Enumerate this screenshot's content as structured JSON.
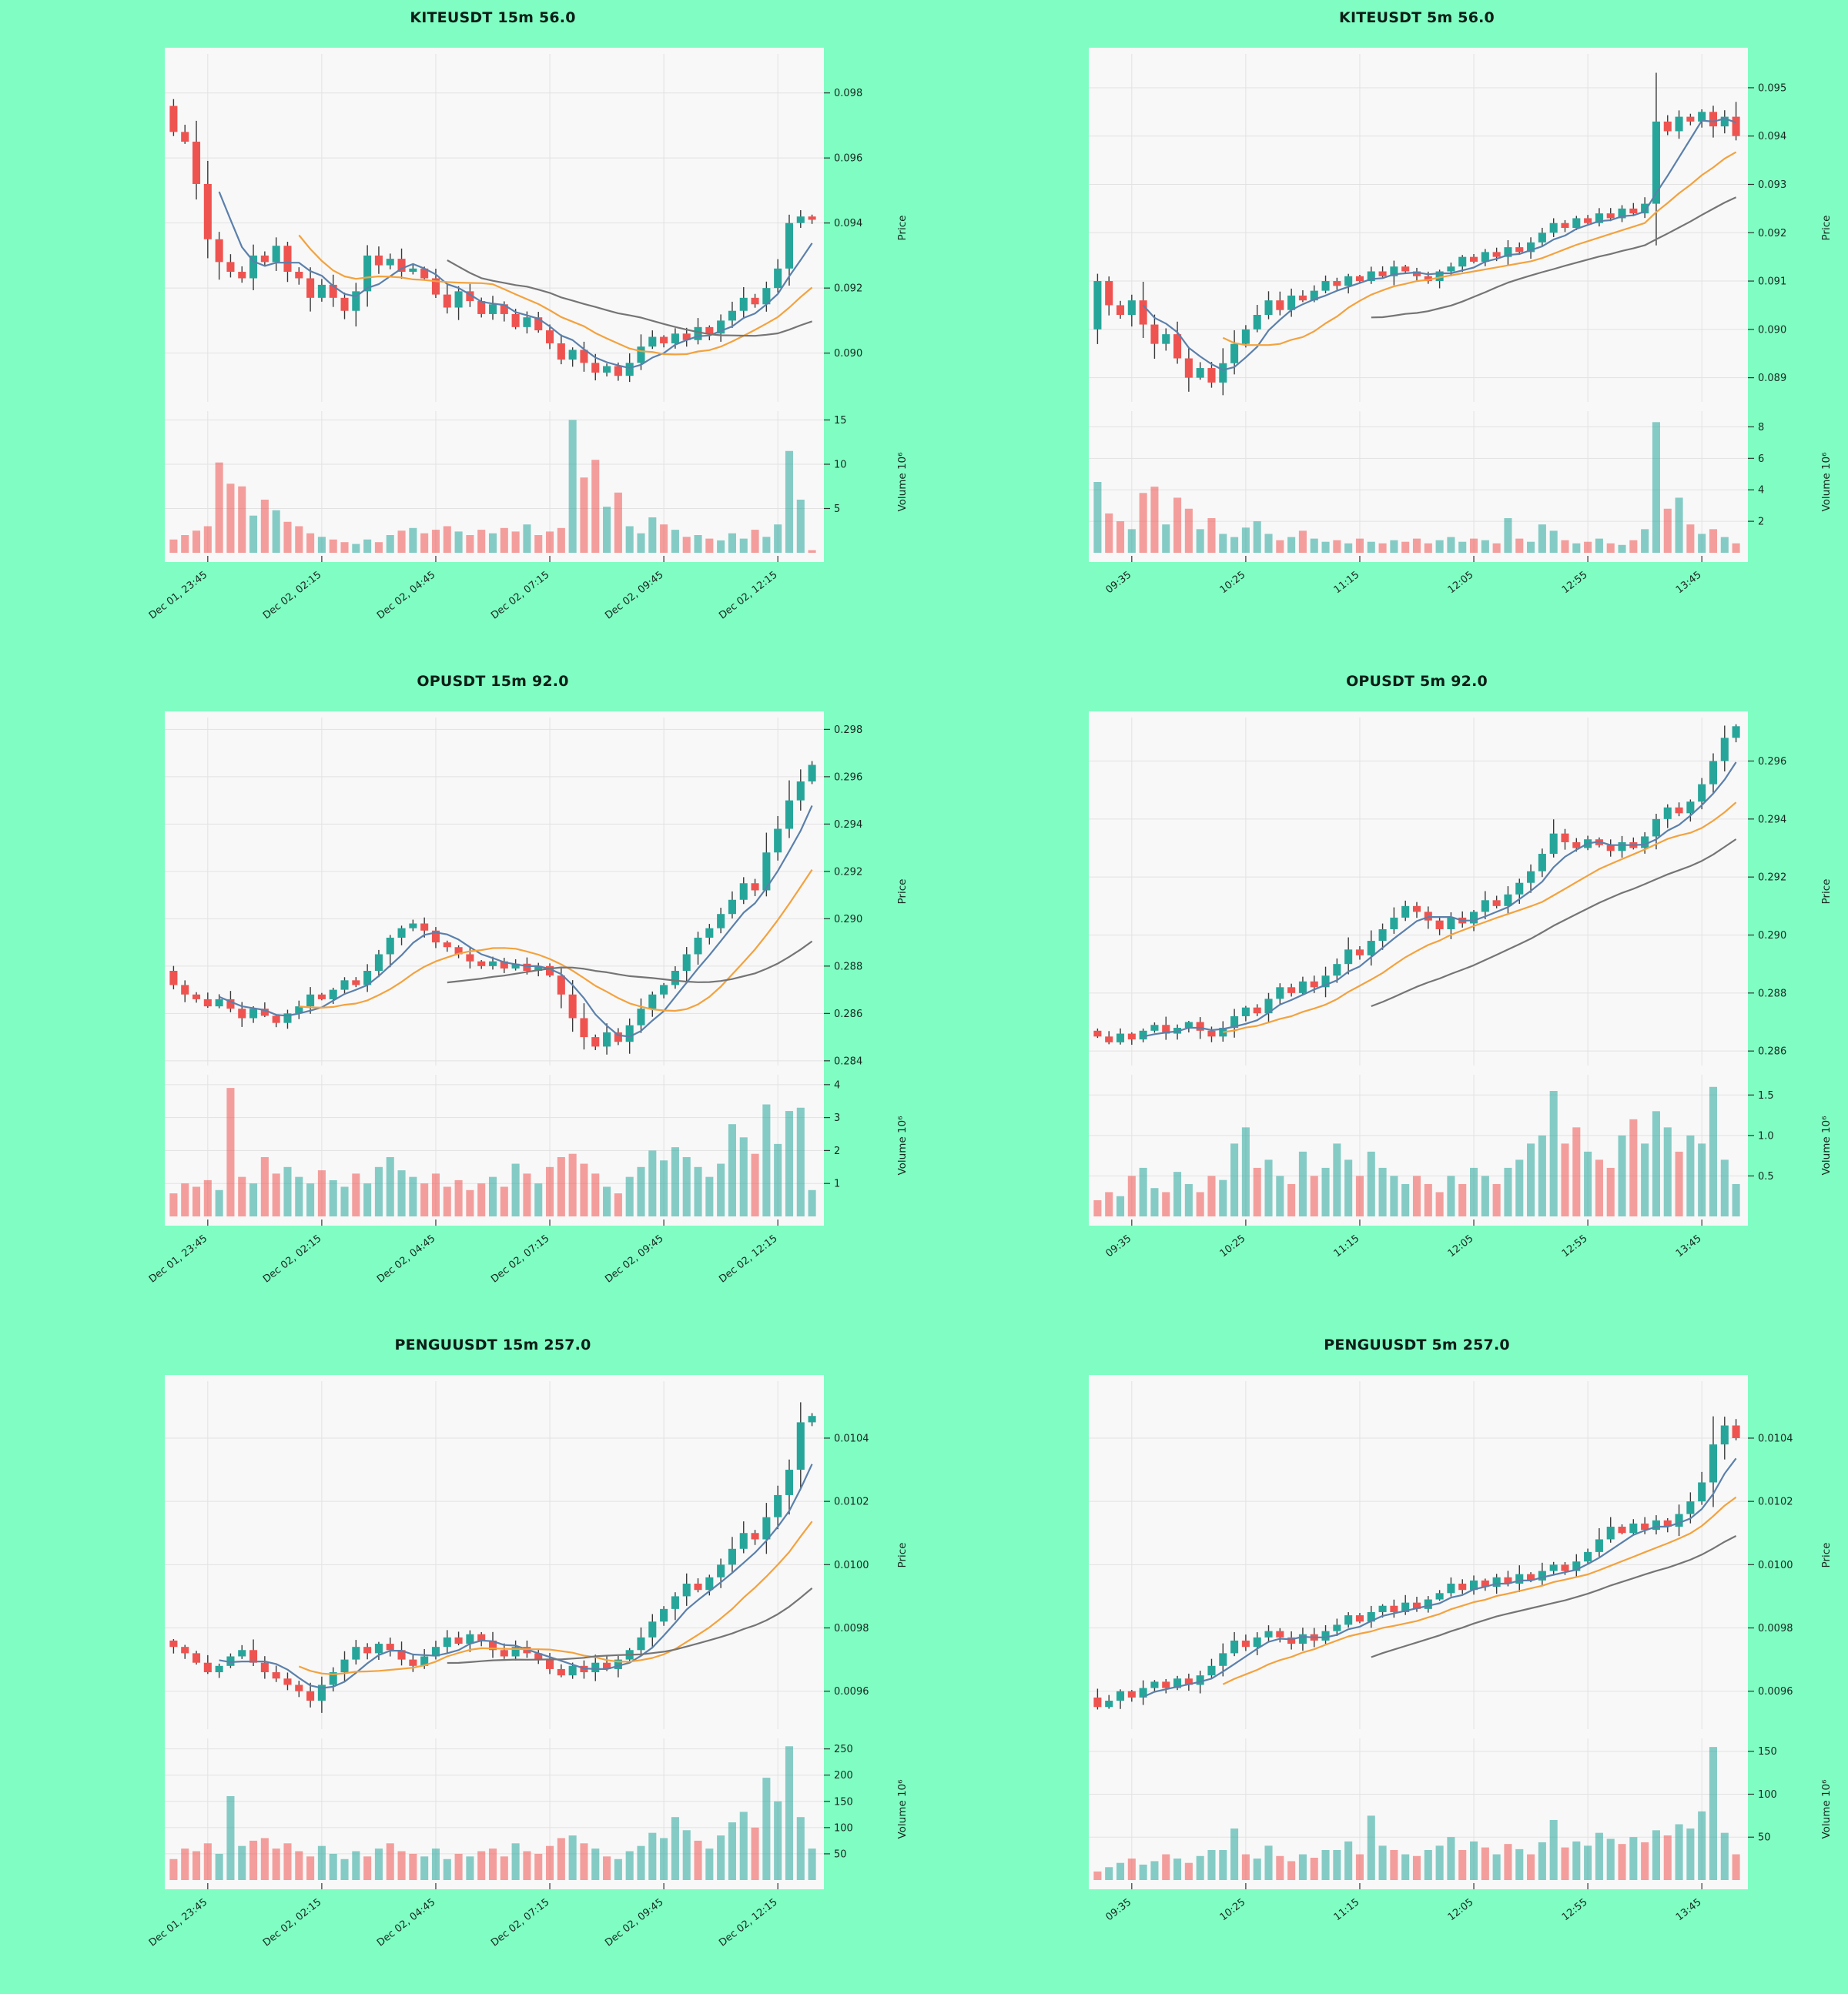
{
  "page": {
    "background": "#80fdc3"
  },
  "style": {
    "panel_bg": "#f8f8f8",
    "grid_color": "#e2e2e2",
    "tick_color": "#333333",
    "label_color": "#16281f",
    "bull_color": "#26a69a",
    "bear_color": "#ef5350",
    "wick_color": "#3a3a3a",
    "volume_opacity": 0.55,
    "ma_colors": [
      "#5b80ab",
      "#f3a23e",
      "#757575"
    ]
  },
  "axis_labels": {
    "price": "Price",
    "volume": "Volume 10⁶"
  },
  "chart_data": [
    {
      "type": "candlestick",
      "title": "KITEUSDT 15m 56.0",
      "symbol": "KITEUSDT",
      "interval": "15m",
      "score": "56.0",
      "legend_position": "none",
      "grid": true,
      "x_tick_labels": [
        "Dec 01, 23:45",
        "Dec 02, 02:15",
        "Dec 02, 04:45",
        "Dec 02, 07:15",
        "Dec 02, 09:45",
        "Dec 02, 12:15"
      ],
      "x_tick_indices": [
        3,
        13,
        23,
        33,
        43,
        53
      ],
      "price_ticks": [
        {
          "v": 0.09,
          "label": "0.090"
        },
        {
          "v": 0.092,
          "label": "0.092"
        },
        {
          "v": 0.094,
          "label": "0.094"
        },
        {
          "v": 0.096,
          "label": "0.096"
        },
        {
          "v": 0.098,
          "label": "0.098"
        }
      ],
      "price_range": [
        0.0885,
        0.0992
      ],
      "volume_ticks": [
        {
          "v": 5,
          "label": "5"
        },
        {
          "v": 10,
          "label": "10"
        },
        {
          "v": 15,
          "label": "15"
        }
      ],
      "volume_max": 16,
      "ma_windows": [
        5,
        12,
        25
      ],
      "open_first": 0.0976,
      "closes": [
        0.0968,
        0.0965,
        0.0952,
        0.0935,
        0.0928,
        0.0925,
        0.0923,
        0.093,
        0.0928,
        0.0933,
        0.0925,
        0.0923,
        0.0917,
        0.0921,
        0.0917,
        0.0913,
        0.0919,
        0.093,
        0.0927,
        0.0929,
        0.0925,
        0.0926,
        0.0923,
        0.0918,
        0.0914,
        0.0919,
        0.0916,
        0.0912,
        0.0915,
        0.0912,
        0.0908,
        0.0911,
        0.0907,
        0.0903,
        0.0898,
        0.0901,
        0.0897,
        0.0894,
        0.0896,
        0.0893,
        0.0897,
        0.0902,
        0.0905,
        0.0903,
        0.0906,
        0.0904,
        0.0908,
        0.0906,
        0.091,
        0.0913,
        0.0917,
        0.0915,
        0.092,
        0.0926,
        0.094,
        0.0942,
        0.0941
      ],
      "volumes": [
        1.5,
        2.0,
        2.5,
        3.0,
        10.2,
        7.8,
        7.5,
        4.2,
        6.0,
        4.8,
        3.5,
        3.0,
        2.2,
        1.8,
        1.5,
        1.2,
        1.0,
        1.5,
        1.2,
        2.0,
        2.5,
        2.8,
        2.2,
        2.6,
        3.0,
        2.4,
        2.0,
        2.6,
        2.2,
        2.8,
        2.4,
        3.2,
        2.0,
        2.4,
        2.8,
        15.0,
        8.5,
        10.5,
        5.2,
        6.8,
        3.0,
        2.2,
        4.0,
        3.2,
        2.6,
        1.8,
        2.0,
        1.6,
        1.4,
        2.2,
        1.6,
        2.6,
        1.8,
        3.2,
        11.5,
        6.0,
        0.3
      ]
    },
    {
      "type": "candlestick",
      "title": "KITEUSDT 5m 56.0",
      "symbol": "KITEUSDT",
      "interval": "5m",
      "score": "56.0",
      "legend_position": "none",
      "grid": true,
      "x_tick_labels": [
        "09:35",
        "10:25",
        "11:15",
        "12:05",
        "12:55",
        "13:45"
      ],
      "x_tick_indices": [
        3,
        13,
        23,
        33,
        43,
        53
      ],
      "price_ticks": [
        {
          "v": 0.089,
          "label": "0.089"
        },
        {
          "v": 0.09,
          "label": "0.090"
        },
        {
          "v": 0.091,
          "label": "0.091"
        },
        {
          "v": 0.092,
          "label": "0.092"
        },
        {
          "v": 0.093,
          "label": "0.093"
        },
        {
          "v": 0.094,
          "label": "0.094"
        },
        {
          "v": 0.095,
          "label": "0.095"
        }
      ],
      "price_range": [
        0.0885,
        0.0957
      ],
      "volume_ticks": [
        {
          "v": 2,
          "label": "2"
        },
        {
          "v": 4,
          "label": "4"
        },
        {
          "v": 6,
          "label": "6"
        },
        {
          "v": 8,
          "label": "8"
        }
      ],
      "volume_max": 9,
      "ma_windows": [
        5,
        12,
        25
      ],
      "open_first": 0.09,
      "closes": [
        0.091,
        0.0905,
        0.0903,
        0.0906,
        0.0901,
        0.0897,
        0.0899,
        0.0894,
        0.089,
        0.0892,
        0.0889,
        0.0893,
        0.0897,
        0.09,
        0.0903,
        0.0906,
        0.0904,
        0.0907,
        0.0906,
        0.0908,
        0.091,
        0.0909,
        0.0911,
        0.091,
        0.0912,
        0.0911,
        0.0913,
        0.0912,
        0.0911,
        0.091,
        0.0912,
        0.0913,
        0.0915,
        0.0914,
        0.0916,
        0.0915,
        0.0917,
        0.0916,
        0.0918,
        0.092,
        0.0922,
        0.0921,
        0.0923,
        0.0922,
        0.0924,
        0.0923,
        0.0925,
        0.0924,
        0.0926,
        0.0943,
        0.0941,
        0.0944,
        0.0943,
        0.0945,
        0.0942,
        0.0944,
        0.094
      ],
      "volumes": [
        4.5,
        2.5,
        2.0,
        1.5,
        3.8,
        4.2,
        1.8,
        3.5,
        2.8,
        1.5,
        2.2,
        1.2,
        1.0,
        1.6,
        2.0,
        1.2,
        0.8,
        1.0,
        1.4,
        0.9,
        0.7,
        0.8,
        0.6,
        0.9,
        0.7,
        0.6,
        0.8,
        0.7,
        0.9,
        0.6,
        0.8,
        1.0,
        0.7,
        0.9,
        0.8,
        0.6,
        2.2,
        0.9,
        0.7,
        1.8,
        1.4,
        0.8,
        0.6,
        0.7,
        0.9,
        0.6,
        0.5,
        0.8,
        1.5,
        8.3,
        2.8,
        3.5,
        1.8,
        1.2,
        1.5,
        1.0,
        0.6
      ]
    },
    {
      "type": "candlestick",
      "title": "OPUSDT 15m 92.0",
      "symbol": "OPUSDT",
      "interval": "15m",
      "score": "92.0",
      "legend_position": "none",
      "grid": true,
      "x_tick_labels": [
        "Dec 01, 23:45",
        "Dec 02, 02:15",
        "Dec 02, 04:45",
        "Dec 02, 07:15",
        "Dec 02, 09:45",
        "Dec 02, 12:15"
      ],
      "x_tick_indices": [
        3,
        13,
        23,
        33,
        43,
        53
      ],
      "price_ticks": [
        {
          "v": 0.284,
          "label": "0.284"
        },
        {
          "v": 0.286,
          "label": "0.286"
        },
        {
          "v": 0.288,
          "label": "0.288"
        },
        {
          "v": 0.29,
          "label": "0.290"
        },
        {
          "v": 0.292,
          "label": "0.292"
        },
        {
          "v": 0.294,
          "label": "0.294"
        },
        {
          "v": 0.296,
          "label": "0.296"
        },
        {
          "v": 0.298,
          "label": "0.298"
        }
      ],
      "price_range": [
        0.2838,
        0.2985
      ],
      "volume_ticks": [
        {
          "v": 1,
          "label": "1"
        },
        {
          "v": 2,
          "label": "2"
        },
        {
          "v": 3,
          "label": "3"
        },
        {
          "v": 4,
          "label": "4"
        }
      ],
      "volume_max": 4.3,
      "ma_windows": [
        5,
        12,
        25
      ],
      "open_first": 0.2878,
      "closes": [
        0.2872,
        0.2868,
        0.2866,
        0.2863,
        0.2866,
        0.2862,
        0.2858,
        0.2862,
        0.2859,
        0.2856,
        0.286,
        0.2863,
        0.2868,
        0.2866,
        0.287,
        0.2874,
        0.2872,
        0.2878,
        0.2885,
        0.2892,
        0.2896,
        0.2898,
        0.2895,
        0.289,
        0.2888,
        0.2885,
        0.2882,
        0.288,
        0.2882,
        0.2879,
        0.2881,
        0.2878,
        0.288,
        0.2876,
        0.2868,
        0.2858,
        0.285,
        0.2846,
        0.2852,
        0.2848,
        0.2855,
        0.2862,
        0.2868,
        0.2872,
        0.2878,
        0.2885,
        0.2892,
        0.2896,
        0.2902,
        0.2908,
        0.2915,
        0.2912,
        0.2928,
        0.2938,
        0.295,
        0.2958,
        0.2965
      ],
      "volumes": [
        0.7,
        1.0,
        0.9,
        1.1,
        0.8,
        3.9,
        1.2,
        1.0,
        1.8,
        1.3,
        1.5,
        1.2,
        1.0,
        1.4,
        1.1,
        0.9,
        1.3,
        1.0,
        1.5,
        1.8,
        1.4,
        1.2,
        1.0,
        1.3,
        0.9,
        1.1,
        0.8,
        1.0,
        1.2,
        0.9,
        1.6,
        1.3,
        1.0,
        1.5,
        1.8,
        1.9,
        1.6,
        1.3,
        0.9,
        0.7,
        1.2,
        1.5,
        2.0,
        1.7,
        2.1,
        1.8,
        1.5,
        1.2,
        1.6,
        2.8,
        2.4,
        1.9,
        3.4,
        2.2,
        3.2,
        3.3,
        0.8
      ]
    },
    {
      "type": "candlestick",
      "title": "OPUSDT 5m 92.0",
      "symbol": "OPUSDT",
      "interval": "5m",
      "score": "92.0",
      "legend_position": "none",
      "grid": true,
      "x_tick_labels": [
        "09:35",
        "10:25",
        "11:15",
        "12:05",
        "12:55",
        "13:45"
      ],
      "x_tick_indices": [
        3,
        13,
        23,
        33,
        43,
        53
      ],
      "price_ticks": [
        {
          "v": 0.286,
          "label": "0.286"
        },
        {
          "v": 0.288,
          "label": "0.288"
        },
        {
          "v": 0.29,
          "label": "0.290"
        },
        {
          "v": 0.292,
          "label": "0.292"
        },
        {
          "v": 0.294,
          "label": "0.294"
        },
        {
          "v": 0.296,
          "label": "0.296"
        }
      ],
      "price_range": [
        0.2855,
        0.2975
      ],
      "volume_ticks": [
        {
          "v": 0.5,
          "label": "0.5"
        },
        {
          "v": 1.0,
          "label": "1.0"
        },
        {
          "v": 1.5,
          "label": "1.5"
        }
      ],
      "volume_max": 1.75,
      "ma_windows": [
        5,
        12,
        25
      ],
      "open_first": 0.2867,
      "closes": [
        0.2865,
        0.2863,
        0.2866,
        0.2864,
        0.2867,
        0.2869,
        0.2866,
        0.2868,
        0.287,
        0.2867,
        0.2865,
        0.2868,
        0.2872,
        0.2875,
        0.2873,
        0.2878,
        0.2882,
        0.288,
        0.2884,
        0.2882,
        0.2886,
        0.289,
        0.2895,
        0.2893,
        0.2898,
        0.2902,
        0.2906,
        0.291,
        0.2908,
        0.2905,
        0.2902,
        0.2906,
        0.2904,
        0.2908,
        0.2912,
        0.291,
        0.2914,
        0.2918,
        0.2922,
        0.2928,
        0.2935,
        0.2932,
        0.293,
        0.2933,
        0.2931,
        0.2929,
        0.2932,
        0.293,
        0.2934,
        0.294,
        0.2944,
        0.2942,
        0.2946,
        0.2952,
        0.296,
        0.2968,
        0.2972
      ],
      "volumes": [
        0.2,
        0.3,
        0.25,
        0.5,
        0.6,
        0.35,
        0.3,
        0.55,
        0.4,
        0.3,
        0.5,
        0.45,
        0.9,
        1.1,
        0.6,
        0.7,
        0.5,
        0.4,
        0.8,
        0.5,
        0.6,
        0.9,
        0.7,
        0.5,
        0.8,
        0.6,
        0.5,
        0.4,
        0.5,
        0.4,
        0.3,
        0.5,
        0.4,
        0.6,
        0.5,
        0.4,
        0.6,
        0.7,
        0.9,
        1.0,
        1.55,
        0.9,
        1.1,
        0.8,
        0.7,
        0.6,
        1.0,
        1.2,
        0.9,
        1.3,
        1.1,
        0.8,
        1.0,
        0.9,
        1.6,
        0.7,
        0.4
      ]
    },
    {
      "type": "candlestick",
      "title": "PENGUUSDT 15m 257.0",
      "symbol": "PENGUUSDT",
      "interval": "15m",
      "score": "257.0",
      "legend_position": "none",
      "grid": true,
      "x_tick_labels": [
        "Dec 01, 23:45",
        "Dec 02, 02:15",
        "Dec 02, 04:45",
        "Dec 02, 07:15",
        "Dec 02, 09:45",
        "Dec 02, 12:15"
      ],
      "x_tick_indices": [
        3,
        13,
        23,
        33,
        43,
        53
      ],
      "price_ticks": [
        {
          "v": 0.0096,
          "label": "0.0096"
        },
        {
          "v": 0.0098,
          "label": "0.0098"
        },
        {
          "v": 0.01,
          "label": "0.0100"
        },
        {
          "v": 0.0102,
          "label": "0.0102"
        },
        {
          "v": 0.0104,
          "label": "0.0104"
        }
      ],
      "price_range": [
        0.00948,
        0.01058
      ],
      "volume_ticks": [
        {
          "v": 50,
          "label": "50"
        },
        {
          "v": 100,
          "label": "100"
        },
        {
          "v": 150,
          "label": "150"
        },
        {
          "v": 200,
          "label": "200"
        },
        {
          "v": 250,
          "label": "250"
        }
      ],
      "volume_max": 270,
      "ma_windows": [
        5,
        12,
        25
      ],
      "open_first": 0.00976,
      "closes": [
        0.00974,
        0.00972,
        0.00969,
        0.00966,
        0.00968,
        0.00971,
        0.00973,
        0.00969,
        0.00966,
        0.00964,
        0.00962,
        0.0096,
        0.00957,
        0.00962,
        0.00966,
        0.0097,
        0.00974,
        0.00972,
        0.00975,
        0.00973,
        0.0097,
        0.00968,
        0.00971,
        0.00974,
        0.00977,
        0.00975,
        0.00978,
        0.00976,
        0.00973,
        0.00971,
        0.00974,
        0.00972,
        0.0097,
        0.00967,
        0.00965,
        0.00968,
        0.00966,
        0.00969,
        0.00967,
        0.0097,
        0.00973,
        0.00977,
        0.00982,
        0.00986,
        0.0099,
        0.00994,
        0.00992,
        0.00996,
        0.01,
        0.01005,
        0.0101,
        0.01008,
        0.01015,
        0.01022,
        0.0103,
        0.01045,
        0.01047
      ],
      "volumes": [
        40,
        60,
        55,
        70,
        50,
        160,
        65,
        75,
        80,
        60,
        70,
        55,
        45,
        65,
        50,
        40,
        55,
        45,
        60,
        70,
        55,
        50,
        45,
        60,
        40,
        50,
        45,
        55,
        60,
        45,
        70,
        55,
        50,
        65,
        80,
        85,
        70,
        60,
        45,
        40,
        55,
        65,
        90,
        80,
        120,
        95,
        75,
        60,
        85,
        110,
        130,
        100,
        195,
        150,
        255,
        120,
        60
      ]
    },
    {
      "type": "candlestick",
      "title": "PENGUUSDT 5m 257.0",
      "symbol": "PENGUUSDT",
      "interval": "5m",
      "score": "257.0",
      "legend_position": "none",
      "grid": true,
      "x_tick_labels": [
        "09:35",
        "10:25",
        "11:15",
        "12:05",
        "12:55",
        "13:45"
      ],
      "x_tick_indices": [
        3,
        13,
        23,
        33,
        43,
        53
      ],
      "price_ticks": [
        {
          "v": 0.0096,
          "label": "0.0096"
        },
        {
          "v": 0.0098,
          "label": "0.0098"
        },
        {
          "v": 0.01,
          "label": "0.0100"
        },
        {
          "v": 0.0102,
          "label": "0.0102"
        },
        {
          "v": 0.0104,
          "label": "0.0104"
        }
      ],
      "price_range": [
        0.00948,
        0.01058
      ],
      "volume_ticks": [
        {
          "v": 50,
          "label": "50"
        },
        {
          "v": 100,
          "label": "100"
        },
        {
          "v": 150,
          "label": "150"
        }
      ],
      "volume_max": 165,
      "ma_windows": [
        5,
        12,
        25
      ],
      "open_first": 0.00958,
      "closes": [
        0.00955,
        0.00957,
        0.0096,
        0.00958,
        0.00961,
        0.00963,
        0.00961,
        0.00964,
        0.00962,
        0.00965,
        0.00968,
        0.00972,
        0.00976,
        0.00974,
        0.00977,
        0.00979,
        0.00977,
        0.00975,
        0.00978,
        0.00976,
        0.00979,
        0.00981,
        0.00984,
        0.00982,
        0.00985,
        0.00987,
        0.00985,
        0.00988,
        0.00986,
        0.00989,
        0.00991,
        0.00994,
        0.00992,
        0.00995,
        0.00993,
        0.00996,
        0.00994,
        0.00997,
        0.00995,
        0.00998,
        0.01,
        0.00998,
        0.01001,
        0.01004,
        0.01008,
        0.01012,
        0.0101,
        0.01013,
        0.01011,
        0.01014,
        0.01012,
        0.01016,
        0.0102,
        0.01026,
        0.01038,
        0.01044,
        0.0104
      ],
      "volumes": [
        10,
        15,
        20,
        25,
        18,
        22,
        30,
        25,
        20,
        28,
        35,
        35,
        60,
        30,
        25,
        40,
        28,
        22,
        30,
        26,
        35,
        35,
        45,
        30,
        75,
        40,
        35,
        30,
        28,
        35,
        40,
        50,
        35,
        45,
        38,
        30,
        42,
        36,
        30,
        44,
        70,
        38,
        45,
        40,
        55,
        48,
        42,
        50,
        44,
        58,
        52,
        65,
        60,
        80,
        155,
        55,
        30
      ]
    }
  ]
}
